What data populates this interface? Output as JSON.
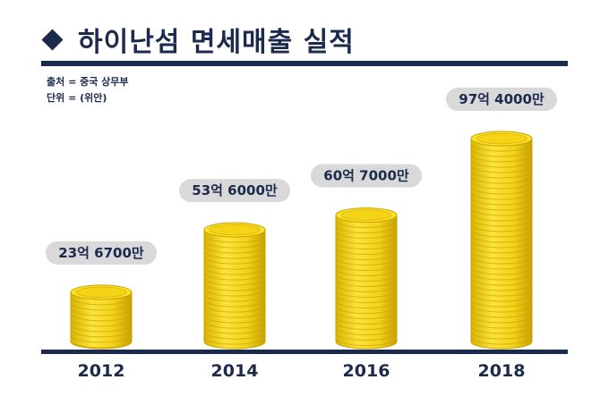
{
  "header": {
    "title": "하이난섬 면세매출 실적",
    "source_note": "출처 = 중국 상무부",
    "unit_note": "단위 = (위안)"
  },
  "colors": {
    "navy": "#1c2a4e",
    "coin_gold": "#f2d21a",
    "coin_edge": "#c9a300",
    "label_bg": "#d9d9d9"
  },
  "chart_data": {
    "type": "bar",
    "categories": [
      "2012",
      "2014",
      "2016",
      "2018"
    ],
    "values": [
      2367000000,
      5360000000,
      6070000000,
      9740000000
    ],
    "value_labels": [
      "23억 6700만",
      "53억 6000만",
      "60억 7000만",
      "97억 4000만"
    ],
    "ylim": [
      0,
      10000000000
    ],
    "grid": false,
    "legend": "none"
  }
}
